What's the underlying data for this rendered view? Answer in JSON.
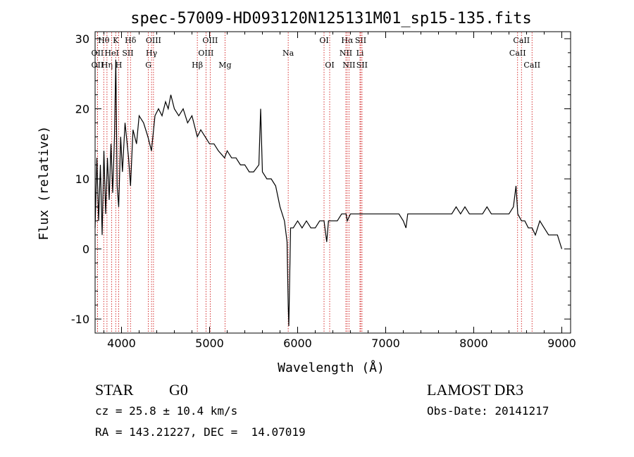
{
  "chart_data": {
    "type": "line",
    "title": "spec-57009-HD093120N125131M01_sp15-135.fits",
    "xlabel": "Wavelength (Å)",
    "ylabel": "Flux (relative)",
    "xlim": [
      3700,
      9100
    ],
    "ylim": [
      -12,
      31
    ],
    "xticks": [
      4000,
      5000,
      6000,
      7000,
      8000,
      9000
    ],
    "yticks": [
      -10,
      0,
      10,
      20,
      30
    ],
    "grid": false,
    "series": [
      {
        "color": "#000000",
        "x": [
          3700,
          3720,
          3740,
          3760,
          3780,
          3800,
          3820,
          3840,
          3860,
          3880,
          3900,
          3920,
          3935,
          3950,
          3968,
          3990,
          4010,
          4040,
          4080,
          4102,
          4130,
          4170,
          4200,
          4250,
          4300,
          4340,
          4380,
          4420,
          4460,
          4500,
          4530,
          4560,
          4600,
          4650,
          4700,
          4750,
          4800,
          4861,
          4900,
          4950,
          5000,
          5050,
          5100,
          5170,
          5200,
          5250,
          5300,
          5350,
          5400,
          5450,
          5500,
          5560,
          5580,
          5600,
          5650,
          5700,
          5750,
          5800,
          5850,
          5880,
          5893,
          5900,
          5920,
          5950,
          6000,
          6050,
          6100,
          6150,
          6200,
          6250,
          6300,
          6330,
          6350,
          6400,
          6450,
          6500,
          6550,
          6563,
          6600,
          6650,
          6700,
          6750,
          6800,
          6850,
          6900,
          6950,
          7000,
          7050,
          7100,
          7150,
          7200,
          7230,
          7250,
          7300,
          7350,
          7400,
          7450,
          7500,
          7550,
          7600,
          7650,
          7700,
          7750,
          7800,
          7850,
          7900,
          7950,
          8000,
          8050,
          8100,
          8150,
          8200,
          8250,
          8300,
          8350,
          8400,
          8450,
          8480,
          8500,
          8542,
          8580,
          8620,
          8662,
          8700,
          8750,
          8800,
          8850,
          8900,
          8950,
          9000
        ],
        "y": [
          3,
          13,
          4,
          12,
          2,
          14,
          5,
          13,
          7,
          15,
          8,
          16,
          27,
          9,
          6,
          16,
          11,
          18,
          13,
          9,
          17,
          15,
          19,
          18,
          16,
          14,
          19,
          20,
          19,
          21,
          20,
          22,
          20,
          19,
          20,
          18,
          19,
          16,
          17,
          16,
          15,
          15,
          14,
          13,
          14,
          13,
          13,
          12,
          12,
          11,
          11,
          12,
          20,
          11,
          10,
          10,
          9,
          6,
          4,
          1,
          -8,
          -11,
          3,
          3,
          4,
          3,
          4,
          3,
          3,
          4,
          4,
          1,
          4,
          4,
          4,
          5,
          5,
          4,
          5,
          5,
          5,
          5,
          5,
          5,
          5,
          5,
          5,
          5,
          5,
          5,
          4,
          3,
          5,
          5,
          5,
          5,
          5,
          5,
          5,
          5,
          5,
          5,
          5,
          6,
          5,
          6,
          5,
          5,
          5,
          5,
          6,
          5,
          5,
          5,
          5,
          5,
          6,
          9,
          5,
          4,
          4,
          3,
          3,
          2,
          4,
          3,
          2,
          2,
          2,
          0
        ]
      }
    ],
    "lines": [
      {
        "label": "OII",
        "x": 3727,
        "row": 2
      },
      {
        "label": "Hθ",
        "x": 3798,
        "row": 1
      },
      {
        "label": "OII",
        "x": 3727,
        "row": 3
      },
      {
        "label": "Hη",
        "x": 3835,
        "row": 3
      },
      {
        "label": "HeI",
        "x": 3889,
        "row": 2
      },
      {
        "label": "K",
        "x": 3934,
        "row": 1
      },
      {
        "label": "H",
        "x": 3968,
        "row": 3
      },
      {
        "label": "Hδ",
        "x": 4102,
        "row": 1
      },
      {
        "label": "SII",
        "x": 4072,
        "row": 2
      },
      {
        "label": "OIII",
        "x": 4363,
        "row": 1
      },
      {
        "label": "Hγ",
        "x": 4341,
        "row": 2
      },
      {
        "label": "G",
        "x": 4305,
        "row": 3
      },
      {
        "label": "Hβ",
        "x": 4861,
        "row": 3
      },
      {
        "label": "OIII",
        "x": 5007,
        "row": 1
      },
      {
        "label": "OIII",
        "x": 4959,
        "row": 2
      },
      {
        "label": "Mg",
        "x": 5175,
        "row": 3
      },
      {
        "label": "Na",
        "x": 5893,
        "row": 2
      },
      {
        "label": "OI",
        "x": 6300,
        "row": 1
      },
      {
        "label": "OI",
        "x": 6364,
        "row": 3
      },
      {
        "label": "Hα",
        "x": 6563,
        "row": 1
      },
      {
        "label": "NII",
        "x": 6548,
        "row": 2
      },
      {
        "label": "NII",
        "x": 6583,
        "row": 3
      },
      {
        "label": "SII",
        "x": 6716,
        "row": 1
      },
      {
        "label": "Li",
        "x": 6708,
        "row": 2
      },
      {
        "label": "SII",
        "x": 6731,
        "row": 3
      },
      {
        "label": "CaII",
        "x": 8542,
        "row": 1
      },
      {
        "label": "CaII",
        "x": 8498,
        "row": 2
      },
      {
        "label": "CaII",
        "x": 8662,
        "row": 3
      }
    ]
  },
  "info": {
    "object_class": "STAR",
    "subclass": "G0",
    "survey": "LAMOST DR3",
    "cz": "cz = 25.8 ± 10.4 km/s",
    "obs_date": "Obs-Date: 20141217",
    "coords": "RA = 143.21227, DEC =  14.07019"
  }
}
